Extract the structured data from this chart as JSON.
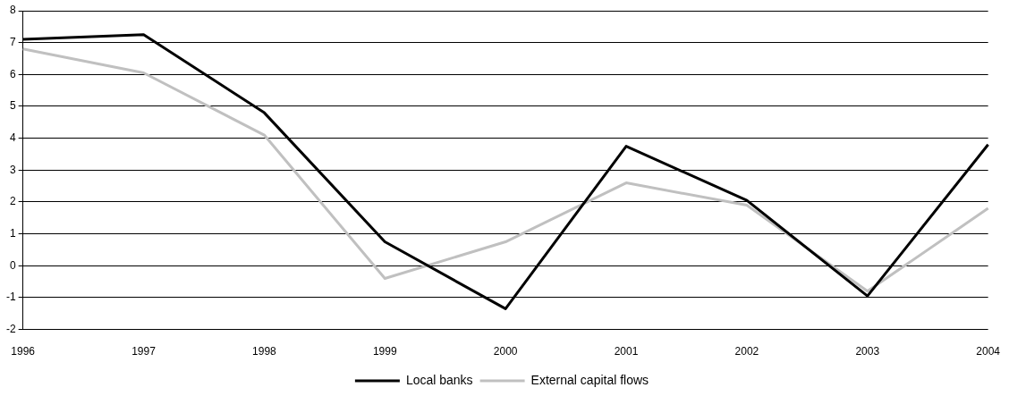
{
  "chart_data": {
    "type": "line",
    "categories": [
      "1996",
      "1997",
      "1998",
      "1999",
      "2000",
      "2001",
      "2002",
      "2003",
      "2004"
    ],
    "series": [
      {
        "name": "Local banks",
        "color": "#000000",
        "values": [
          7.1,
          7.25,
          4.8,
          0.75,
          -1.35,
          3.75,
          2.05,
          -0.95,
          3.8
        ]
      },
      {
        "name": "External capital flows",
        "color": "#c0c0c0",
        "values": [
          6.8,
          6.05,
          4.1,
          -0.4,
          0.75,
          2.6,
          1.9,
          -0.8,
          1.8
        ]
      }
    ],
    "ylim": [
      -2,
      8
    ],
    "yticks": [
      -2,
      -1,
      0,
      1,
      2,
      3,
      4,
      5,
      6,
      7,
      8
    ],
    "grid": "y",
    "legend": "bottom",
    "marker": "none",
    "line_style": "solid"
  }
}
